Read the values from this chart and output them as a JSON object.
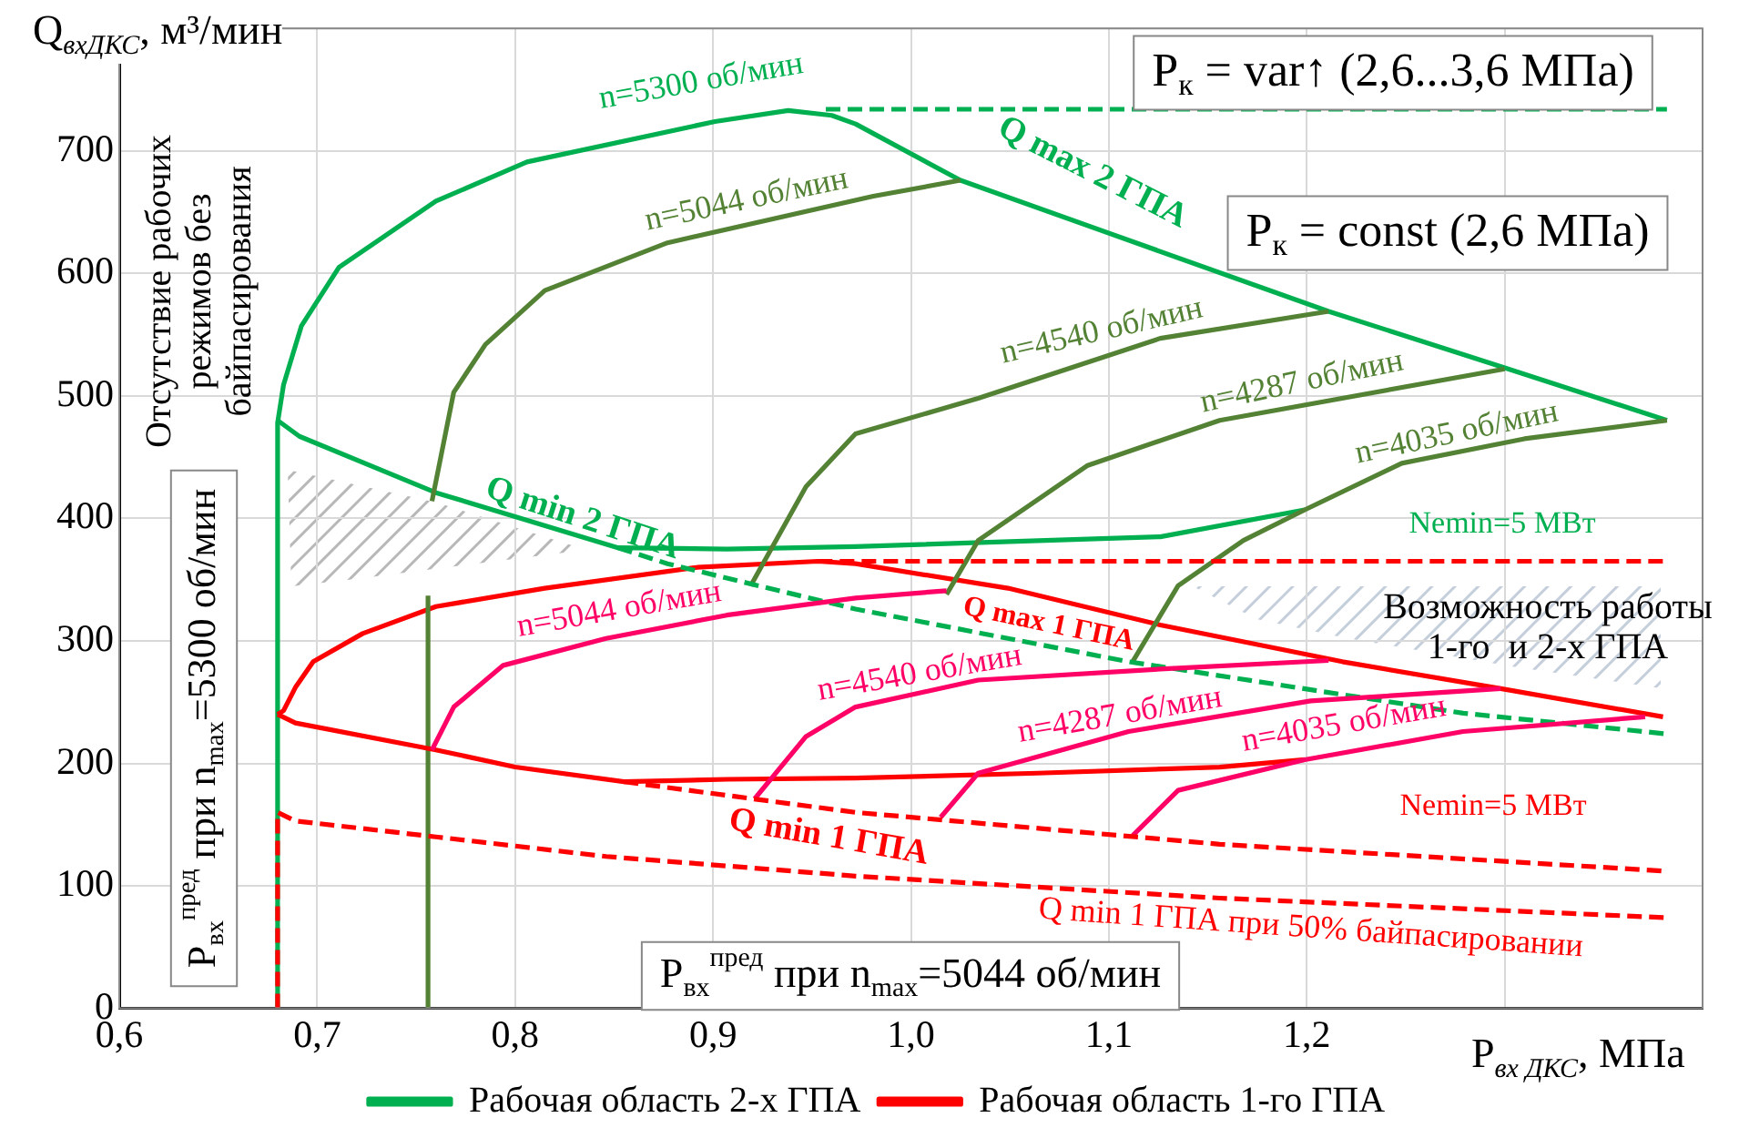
{
  "chart_data": {
    "type": "line",
    "xlabel": "P$_{вх ДКС}$, МПа",
    "ylabel": "Q$_{вхДКС}$, м³/мин",
    "xlim": [
      0.6,
      1.4
    ],
    "xticks": [
      {
        "value": 0.6,
        "label": "0,6"
      },
      {
        "value": 0.7,
        "label": "0,7"
      },
      {
        "value": 0.8,
        "label": "0,8"
      },
      {
        "value": 0.9,
        "label": "0,9"
      },
      {
        "value": 1.0,
        "label": "1,0"
      },
      {
        "value": 1.1,
        "label": "1,1"
      },
      {
        "value": 1.2,
        "label": "1,2"
      },
      {
        "value": 1.3,
        "label": null
      },
      {
        "value": 1.4,
        "label": null
      }
    ],
    "ylim": [
      0,
      800
    ],
    "yticks": [
      0,
      100,
      200,
      300,
      400,
      500,
      600,
      700,
      {
        "value": 800,
        "label": null
      }
    ],
    "grid": true,
    "legend": "bottom",
    "marker": "none",
    "series": [
      {
        "name": "Рабочая область 2-х ГПА",
        "color": "#00b050",
        "x": [
          0.68,
          0.68,
          0.683,
          0.692,
          0.711,
          0.76,
          0.806,
          0.901,
          0.938,
          0.96,
          0.972,
          1.025,
          1.211,
          1.3,
          1.382
        ],
        "values": [
          0,
          478,
          509,
          557,
          605,
          659,
          691,
          724,
          733,
          729,
          722,
          676,
          569,
          523,
          480
        ]
      },
      {
        "name": "Рабочая область 1-го ГПА",
        "color": "#ff0000",
        "x": [
          0.68,
          0.683,
          0.689,
          0.698,
          0.723,
          0.76,
          0.815,
          0.892,
          0.953,
          0.972,
          1.049,
          1.126,
          1.218,
          1.298,
          1.38
        ],
        "values": [
          240,
          243,
          262,
          283,
          306,
          328,
          343,
          360,
          365,
          363,
          343,
          313,
          283,
          261,
          238
        ]
      },
      {
        "color": "#00b050",
        "x": [
          0.68,
          0.691,
          0.76,
          0.852,
          0.907,
          0.972,
          1.126,
          1.199
        ],
        "values": [
          480,
          467,
          421,
          376,
          375,
          377,
          385,
          407
        ]
      },
      {
        "color": "#548235",
        "x": [
          1.112,
          1.135,
          1.168,
          1.199,
          1.248,
          1.31,
          1.382
        ],
        "values": [
          283,
          345,
          382,
          407,
          445,
          465,
          480
        ]
      },
      {
        "color": "#548235",
        "x": [
          1.018,
          1.034,
          1.089,
          1.156,
          1.3
        ],
        "values": [
          338,
          382,
          443,
          480,
          522
        ]
      },
      {
        "color": "#548235",
        "x": [
          0.919,
          0.947,
          0.972,
          1.034,
          1.126,
          1.211
        ],
        "values": [
          345,
          426,
          469,
          498,
          547,
          569
        ]
      },
      {
        "color": "#548235",
        "x": [
          0.758,
          0.769,
          0.785,
          0.815,
          0.877,
          0.981,
          1.025
        ],
        "values": [
          414,
          503,
          542,
          586,
          625,
          663,
          676
        ]
      },
      {
        "color": "#548235",
        "x": [
          0.756,
          0.756
        ],
        "values": [
          0,
          337
        ]
      },
      {
        "color": "#00b050",
        "line_style": "dashed",
        "x": [
          0.957,
          1.382
        ],
        "values": [
          734,
          734
        ]
      },
      {
        "color": "#00b050",
        "line_style": "dashed",
        "x": [
          0.852,
          0.877,
          0.923,
          0.972,
          1.11,
          1.279,
          1.382
        ],
        "values": [
          376,
          363,
          345,
          326,
          283,
          241,
          224
        ]
      },
      {
        "color": "#ff0000",
        "x": [
          0.68,
          0.689,
          0.76,
          0.8,
          0.855,
          0.907,
          0.972,
          1.064,
          1.156,
          1.199
        ],
        "values": [
          240,
          233,
          211,
          197,
          185,
          187,
          188,
          192,
          197,
          203
        ]
      },
      {
        "color": "#ff0066",
        "x": [
          1.112,
          1.135,
          1.199,
          1.279,
          1.371
        ],
        "values": [
          141,
          178,
          203,
          226,
          238
        ]
      },
      {
        "color": "#ff0066",
        "x": [
          1.015,
          1.034,
          1.11,
          1.202,
          1.298
        ],
        "values": [
          156,
          192,
          226,
          251,
          261
        ]
      },
      {
        "color": "#ff0066",
        "x": [
          0.921,
          0.947,
          0.972,
          1.034,
          1.126,
          1.211
        ],
        "values": [
          171,
          222,
          246,
          268,
          277,
          284
        ]
      },
      {
        "color": "#ff0066",
        "x": [
          0.758,
          0.769,
          0.794,
          0.846,
          0.907,
          0.972,
          1.018
        ],
        "values": [
          211,
          246,
          280,
          302,
          321,
          335,
          341
        ]
      },
      {
        "color": "#ff0000",
        "line_style": "dashed",
        "x": [
          0.953,
          1.382
        ],
        "values": [
          365,
          365
        ]
      },
      {
        "color": "#ff0000",
        "line_style": "dashed",
        "x": [
          0.855,
          0.972,
          1.156,
          1.382
        ],
        "values": [
          185,
          160,
          134,
          112
        ]
      },
      {
        "color": "#ff0000",
        "line_style": "dashed",
        "x": [
          0.68,
          0.68,
          0.689,
          0.76,
          0.846,
          0.972,
          1.156,
          1.382
        ],
        "values": [
          0,
          160,
          153,
          140,
          124,
          108,
          90,
          74
        ]
      }
    ],
    "annotations": [
      "n=5300 об/мин",
      "n=5044 об/мин",
      "Q max 2 ГПА",
      "P$_{к}$ = var↑ (2,6...3,6 МПа)",
      "P$_{к}$ = const (2,6 МПа)",
      "n=4540 об/мин",
      "n=4287 об/мин",
      "n=4035 об/мин",
      "Nemin=5 МВт",
      "Q min 2 ГПА",
      "Отсутствие рабочих режимов без байпасирования",
      "P$_{вх}$$^{пред}$ при n$_{max}$=5300 об/мин",
      "Q max 1 ГПА",
      "Возможность работы 1-го  и 2-х ГПА",
      "n=5044 об/мин",
      "n=4540 об/мин",
      "n=4287 об/мин",
      "n=4035 об/мин",
      "Nemin=5 МВт",
      "Q min 1 ГПА",
      "Q min 1 ГПА при 50% байпасировании",
      "P$_{вх}$$^{пред}$ при n$_{max}$=5044 об/мин"
    ]
  }
}
